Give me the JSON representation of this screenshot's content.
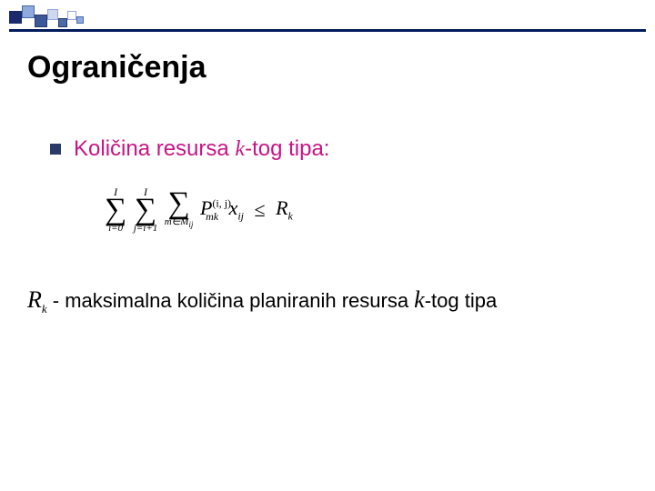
{
  "decoration": {
    "squares": [
      {
        "w": 14,
        "h": 14,
        "fill": "#1a2a6c",
        "border": "#1a2a6c",
        "mt": 6
      },
      {
        "w": 14,
        "h": 14,
        "fill": "#8faadc",
        "border": "#4a6aa8",
        "mt": 0
      },
      {
        "w": 14,
        "h": 14,
        "fill": "#3b5998",
        "border": "#2a3b6a",
        "mt": 10
      },
      {
        "w": 12,
        "h": 12,
        "fill": "#d0d8ec",
        "border": "#8faadc",
        "mt": 4
      },
      {
        "w": 10,
        "h": 10,
        "fill": "#4a6aa8",
        "border": "#2a3b6a",
        "mt": 14
      },
      {
        "w": 10,
        "h": 10,
        "fill": "#ffffff",
        "border": "#8faadc",
        "mt": 6
      },
      {
        "w": 8,
        "h": 8,
        "fill": "#8faadc",
        "border": "#4a6aa8",
        "mt": 12
      }
    ],
    "rule_color": "#001a5c"
  },
  "title": "Ograničenja",
  "bullet": {
    "color": "#c61585",
    "prefix": "Količina resursa ",
    "k": "k",
    "suffix": "-tog tipa:"
  },
  "formula": {
    "sum1_top": "I",
    "sum1_bot": "i=0",
    "sum2_top": "I",
    "sum2_bot": "j=i+1",
    "sum3_top": "",
    "sum3_bot": "m∈M",
    "sum3_bot_sub": "ij",
    "P": "P",
    "P_sub": "mk",
    "P_sup_l": "(i, j)",
    "x": "x",
    "x_sub": "ij",
    "rel": "≤",
    "R": "R",
    "R_sub": "k"
  },
  "footnote": {
    "R": "R",
    "R_sub": "k",
    "mid": " - maksimalna količina planiranih resursa ",
    "k": "k",
    "tail": "-tog tipa"
  }
}
